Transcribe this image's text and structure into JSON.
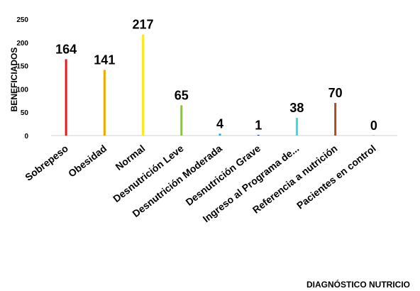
{
  "chart_data": {
    "type": "bar",
    "categories": [
      "Sobrepeso",
      "Obesidad",
      "Normal",
      "Desnutrición Leve",
      "Desnutrición Moderada",
      "Desnutrición Grave",
      "Ingreso al Programa de...",
      "Referencia a nutrición",
      "Pacientes en control"
    ],
    "values": [
      164,
      141,
      217,
      65,
      4,
      1,
      38,
      70,
      0
    ],
    "colors": [
      "#e31a1c",
      "#f0a800",
      "#f5ee1a",
      "#8cc04a",
      "#18a8d8",
      "#1f3f7a",
      "#33e0e0",
      "#a0522d",
      "#c8c8c8"
    ],
    "xlabel": "DIAGNÓSTICO NUTRICIO",
    "ylabel": "BENEFICIADOS",
    "ylim": [
      0,
      250
    ],
    "yticks": [
      0,
      50,
      100,
      150,
      200,
      250
    ],
    "grid": false,
    "legend": "none"
  }
}
